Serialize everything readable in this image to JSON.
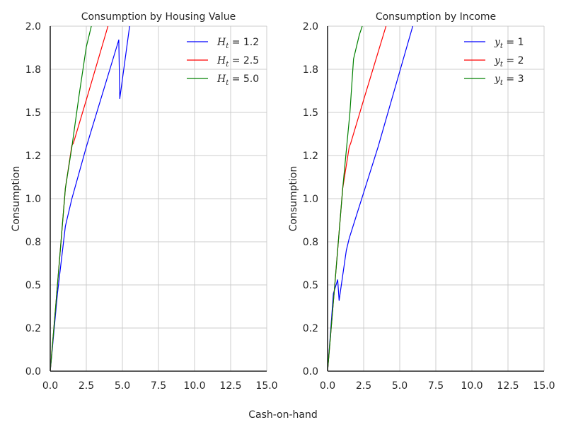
{
  "figure": {
    "supxlabel": "Cash-on-hand"
  },
  "chart_data": [
    {
      "type": "line",
      "title": "Consumption by Housing Value",
      "xlabel": "",
      "ylabel": "Consumption",
      "xlim": [
        0,
        15
      ],
      "ylim": [
        0,
        2
      ],
      "xticks": [
        0,
        2.5,
        5,
        7.5,
        10,
        12.5,
        15
      ],
      "xtick_labels": [
        "0.0",
        "2.5",
        "5.0",
        "7.5",
        "10.0",
        "12.5",
        "15.0"
      ],
      "yticks": [
        0,
        0.25,
        0.5,
        0.75,
        1.0,
        1.25,
        1.5,
        1.75,
        2.0
      ],
      "ytick_labels": [
        "0.0",
        "0.2",
        "0.5",
        "0.8",
        "1.0",
        "1.2",
        "1.5",
        "1.8",
        "2.0"
      ],
      "grid": true,
      "legend_position": "top-right",
      "series": [
        {
          "name": "1.2",
          "label_var": "H",
          "label_sub": "t",
          "color": "#0000ff",
          "points": [
            [
              0,
              0
            ],
            [
              0.2,
              0.18
            ],
            [
              0.5,
              0.45
            ],
            [
              1.05,
              0.84
            ],
            [
              1.5,
              1.0
            ],
            [
              2.5,
              1.3
            ],
            [
              4.75,
              1.92
            ],
            [
              4.82,
              1.58
            ],
            [
              5.5,
              2.0
            ]
          ]
        },
        {
          "name": "2.5",
          "label_var": "H",
          "label_sub": "t",
          "color": "#ff0000",
          "points": [
            [
              0,
              0
            ],
            [
              0.4,
              0.4
            ],
            [
              1.05,
              1.06
            ],
            [
              1.5,
              1.31
            ],
            [
              1.6,
              1.32
            ],
            [
              2.6,
              1.6
            ],
            [
              4.0,
              2.0
            ]
          ]
        },
        {
          "name": "5.0",
          "label_var": "H",
          "label_sub": "t",
          "color": "#008000",
          "points": [
            [
              0,
              0
            ],
            [
              0.4,
              0.4
            ],
            [
              1.05,
              1.06
            ],
            [
              1.5,
              1.3
            ],
            [
              2.0,
              1.6
            ],
            [
              2.5,
              1.88
            ],
            [
              2.85,
              2.0
            ]
          ]
        }
      ]
    },
    {
      "type": "line",
      "title": "Consumption by Income",
      "xlabel": "",
      "ylabel": "Consumption",
      "xlim": [
        0,
        15
      ],
      "ylim": [
        0,
        2
      ],
      "xticks": [
        0,
        2.5,
        5,
        7.5,
        10,
        12.5,
        15
      ],
      "xtick_labels": [
        "0.0",
        "2.5",
        "5.0",
        "7.5",
        "10.0",
        "12.5",
        "15.0"
      ],
      "yticks": [
        0,
        0.25,
        0.5,
        0.75,
        1.0,
        1.25,
        1.5,
        1.75,
        2.0
      ],
      "ytick_labels": [
        "0.0",
        "0.2",
        "0.5",
        "0.8",
        "1.0",
        "1.2",
        "1.5",
        "1.8",
        "2.0"
      ],
      "grid": true,
      "legend_position": "top-right",
      "series": [
        {
          "name": "1",
          "label_var": "y",
          "label_sub": "t",
          "color": "#0000ff",
          "points": [
            [
              0,
              0
            ],
            [
              0.2,
              0.22
            ],
            [
              0.4,
              0.45
            ],
            [
              0.7,
              0.53
            ],
            [
              0.8,
              0.41
            ],
            [
              1.3,
              0.7
            ],
            [
              1.5,
              0.77
            ],
            [
              3.5,
              1.3
            ],
            [
              5.9,
              2.0
            ]
          ]
        },
        {
          "name": "2",
          "label_var": "y",
          "label_sub": "t",
          "color": "#ff0000",
          "points": [
            [
              0,
              0
            ],
            [
              0.5,
              0.5
            ],
            [
              1.05,
              1.06
            ],
            [
              1.5,
              1.3
            ],
            [
              1.6,
              1.32
            ],
            [
              2.6,
              1.6
            ],
            [
              4.05,
              2.0
            ]
          ]
        },
        {
          "name": "3",
          "label_var": "y",
          "label_sub": "t",
          "color": "#008000",
          "points": [
            [
              0,
              0
            ],
            [
              0.5,
              0.5
            ],
            [
              1.05,
              1.06
            ],
            [
              1.55,
              1.5
            ],
            [
              1.8,
              1.81
            ],
            [
              2.2,
              1.95
            ],
            [
              2.4,
              2.0
            ]
          ]
        }
      ]
    }
  ]
}
